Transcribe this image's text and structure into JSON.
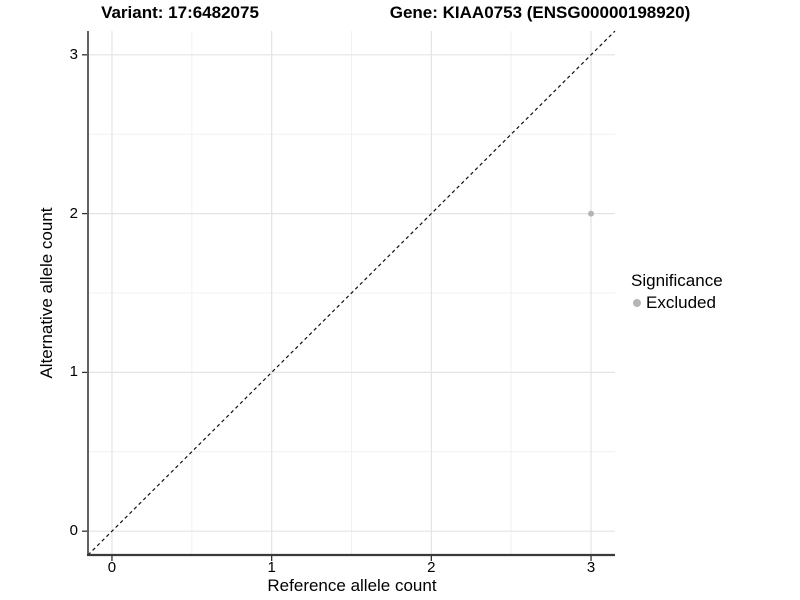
{
  "titles": {
    "variant": "Variant: 17:6482075",
    "gene": "Gene: KIAA0753 (ENSG00000198920)"
  },
  "axes": {
    "x_label": "Reference allele count",
    "y_label": "Alternative allele count"
  },
  "legend": {
    "title": "Significance",
    "items": [
      {
        "label": "Excluded",
        "color": "#b5b5b5"
      }
    ]
  },
  "colors": {
    "background": "#ffffff",
    "text": "#000000",
    "grid_major": "#e4e4e4",
    "grid_minor": "#f1f1f1",
    "axis_line": "#3a3a3a",
    "tick_mark": "#333333",
    "identity_line": "#111111",
    "point": "#b5b5b5"
  },
  "chart_data": {
    "type": "scatter",
    "title_left": "Variant: 17:6482075",
    "title_right": "Gene: KIAA0753 (ENSG00000198920)",
    "xlabel": "Reference allele count",
    "ylabel": "Alternative allele count",
    "xlim": [
      -0.15,
      3.15
    ],
    "ylim": [
      -0.15,
      3.15
    ],
    "x_ticks": [
      0,
      1,
      2,
      3
    ],
    "y_ticks": [
      0,
      1,
      2,
      3
    ],
    "minor_ticks": [
      0.5,
      1.5,
      2.5
    ],
    "grid": true,
    "legend_position": "right",
    "legend_title": "Significance",
    "reference_line": {
      "type": "identity-diagonal",
      "equation": "y = x",
      "style": "dashed",
      "color": "#111111"
    },
    "series": [
      {
        "name": "Excluded",
        "color": "#b5b5b5",
        "points": [
          {
            "x": 3,
            "y": 2
          }
        ]
      }
    ]
  }
}
